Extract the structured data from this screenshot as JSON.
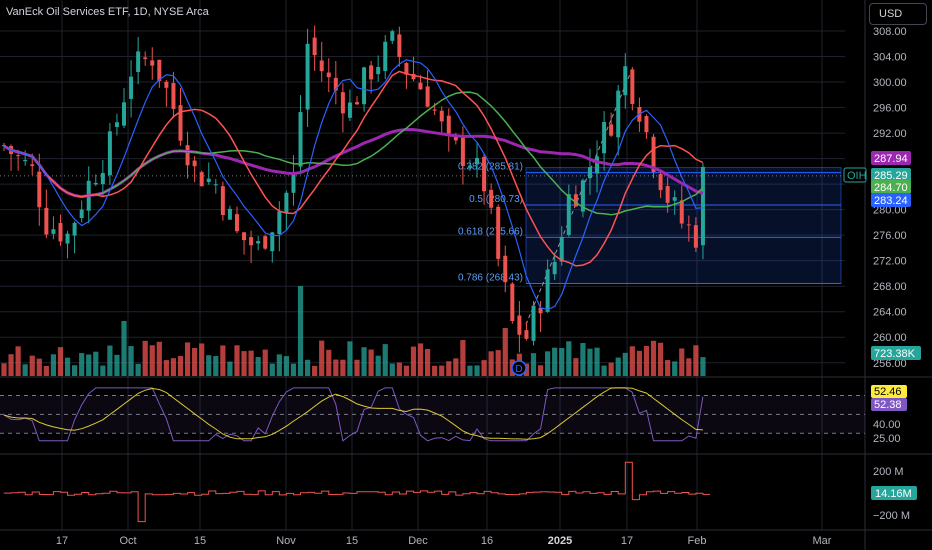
{
  "header": {
    "title": "VanEck Oil Services ETF, 1D, NYSE Arca",
    "currency": "USD"
  },
  "colors": {
    "up": "#26a69a",
    "down": "#ef5350",
    "ma_fast": "#2962ff",
    "ma_mid": "#ff5252",
    "ma_slow": "#4caf50",
    "ma_long": "#9c27b0",
    "fib": "#2962ff",
    "rsi": "#7e57c2",
    "rsi_ma": "#ffeb3b",
    "grid": "#1e222d",
    "text": "#b2b5be"
  },
  "price_axis": {
    "labels": [
      "308.00",
      "304.00",
      "300.00",
      "296.00",
      "292.00",
      "288.00",
      "280.00",
      "276.00",
      "272.00",
      "268.00",
      "264.00",
      "260.00",
      "256.00"
    ],
    "badges": [
      {
        "value": "287.94",
        "label": "",
        "color": "#9c27b0"
      },
      {
        "value": "285.29",
        "label": "OIH",
        "color": "#26a69a"
      },
      {
        "value": "284.70",
        "label": "",
        "color": "#4caf50"
      },
      {
        "value": "283.24",
        "label": "",
        "color": "#2962ff"
      }
    ]
  },
  "volume": {
    "badge": "723.38K"
  },
  "rsi": {
    "labels": [
      "40.00",
      "25.00"
    ],
    "badges": [
      {
        "value": "52.46",
        "color": "#ffeb3b"
      },
      {
        "value": "52.38",
        "color": "#7e57c2"
      }
    ]
  },
  "osc": {
    "labels": [
      "200 M",
      "−200 M"
    ],
    "badge": "14.16M"
  },
  "time_axis": {
    "labels": [
      "17",
      "Oct",
      "15",
      "Nov",
      "15",
      "Dec",
      "16",
      "2025",
      "17",
      "Feb",
      "Mar"
    ]
  },
  "fib": {
    "levels": [
      {
        "label": "0.382 (285.81)",
        "price": 285.81
      },
      {
        "label": "0.5 (280.73)",
        "price": 280.73
      },
      {
        "label": "0.618 (275.66)",
        "price": 275.66
      },
      {
        "label": "0.786 (268.43)",
        "price": 268.43
      }
    ]
  },
  "markers": {
    "dividend": "D"
  },
  "chart_data": {
    "type": "candlestick",
    "series": [
      {
        "name": "OIH",
        "last": 285.29
      },
      {
        "name": "",
        "last": 287.94
      },
      {
        "name": "",
        "last": 284.7
      },
      {
        "name": "",
        "last": 283.24
      }
    ],
    "y_range": [
      254,
      311
    ],
    "rsi_range": [
      20,
      80
    ],
    "rsi_last": [
      52.46,
      52.38
    ],
    "volume_last": "723.38K",
    "osc_last": "14.16M"
  }
}
